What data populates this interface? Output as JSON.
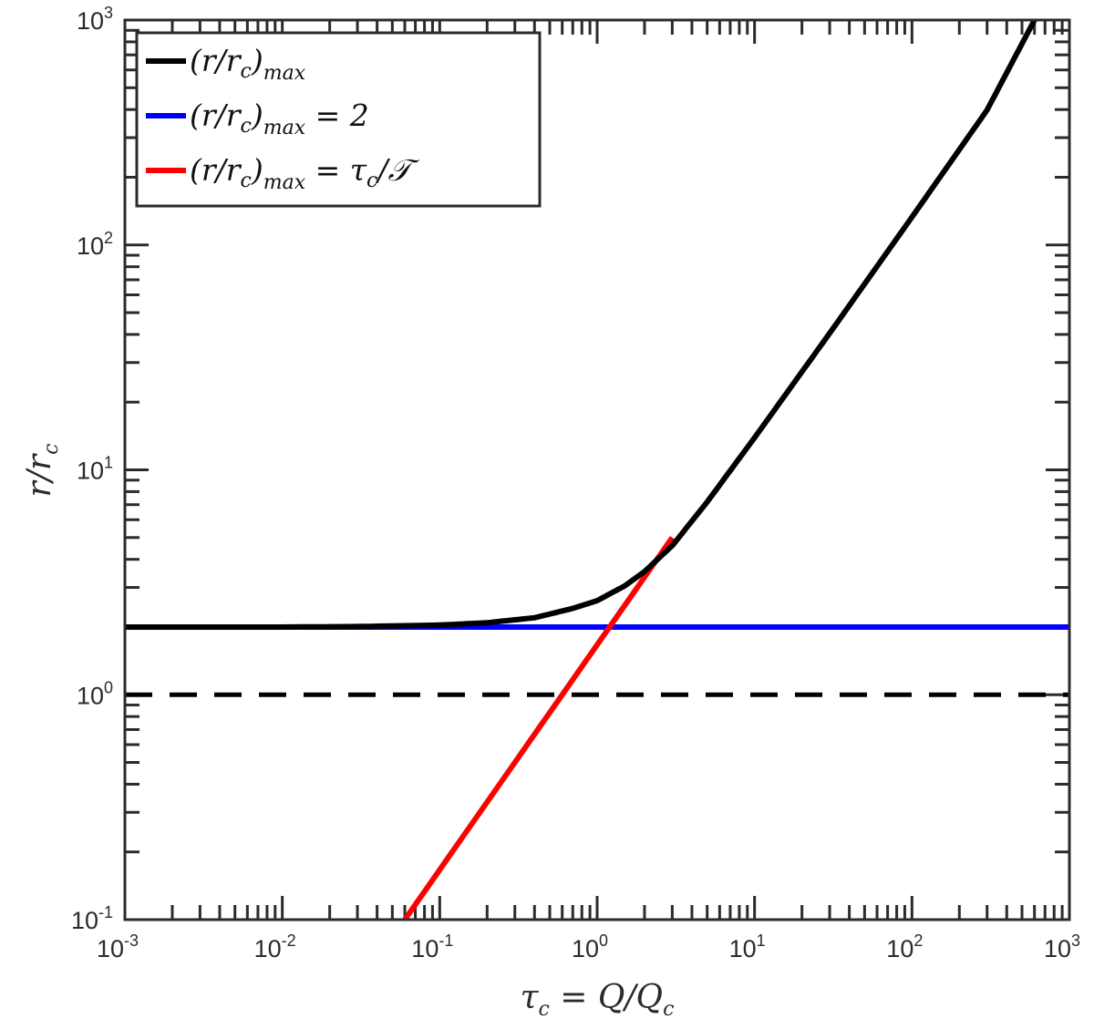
{
  "chart_data": {
    "type": "line",
    "xscale": "log",
    "yscale": "log",
    "xlim": [
      0.001,
      1000
    ],
    "ylim": [
      0.1,
      1000
    ],
    "grid": false,
    "legend_position": "top-left",
    "xlabel": "τc = Q/Qc",
    "ylabel": "r/rc",
    "x_ticks": [
      {
        "base": "10",
        "exp": "-3",
        "value": 0.001
      },
      {
        "base": "10",
        "exp": "-2",
        "value": 0.01
      },
      {
        "base": "10",
        "exp": "-1",
        "value": 0.1
      },
      {
        "base": "10",
        "exp": "0",
        "value": 1
      },
      {
        "base": "10",
        "exp": "1",
        "value": 10
      },
      {
        "base": "10",
        "exp": "2",
        "value": 100
      },
      {
        "base": "10",
        "exp": "3",
        "value": 1000
      }
    ],
    "y_ticks": [
      {
        "base": "10",
        "exp": "-1",
        "value": 0.1
      },
      {
        "base": "10",
        "exp": "0",
        "value": 1
      },
      {
        "base": "10",
        "exp": "1",
        "value": 10
      },
      {
        "base": "10",
        "exp": "2",
        "value": 100
      },
      {
        "base": "10",
        "exp": "3",
        "value": 1000
      }
    ],
    "series": [
      {
        "name": "(r/rc)max",
        "color": "#000000",
        "style": "solid",
        "x": [
          0.001,
          0.003,
          0.01,
          0.03,
          0.1,
          0.2,
          0.4,
          0.7,
          1.0,
          1.5,
          2.0,
          3.0,
          5.0,
          10,
          30,
          100,
          300,
          600
        ],
        "y": [
          2.0,
          2.0,
          2.0,
          2.01,
          2.04,
          2.09,
          2.2,
          2.42,
          2.62,
          3.05,
          3.53,
          4.6,
          7.2,
          13.9,
          40.5,
          133,
          398,
          1000
        ]
      },
      {
        "name": "(r/rc)max = 2",
        "color": "#0000ff",
        "style": "solid",
        "x": [
          0.001,
          1000
        ],
        "y": [
          2.0,
          2.0
        ]
      },
      {
        "name": "(r/rc)max = τc/𝒯",
        "color": "#ff0000",
        "style": "solid",
        "x": [
          0.06,
          3.0
        ],
        "y": [
          0.1,
          5.0
        ]
      },
      {
        "name": "",
        "color": "#000000",
        "style": "dashed",
        "x": [
          0.001,
          1000
        ],
        "y": [
          1.0,
          1.0
        ]
      }
    ],
    "legend": [
      {
        "main": "(r/r",
        "sub1": "c",
        "close": ")",
        "sub2": "max",
        "suffix": "",
        "color": "#000000"
      },
      {
        "main": "(r/r",
        "sub1": "c",
        "close": ")",
        "sub2": "max",
        "suffix": " = 2",
        "color": "#0000ff"
      },
      {
        "main": "(r/r",
        "sub1": "c",
        "close": ")",
        "sub2": "max",
        "suffix": " = τ",
        "suffix_sub": "c",
        "suffix_end": "/𝒯",
        "color": "#ff0000"
      }
    ]
  }
}
